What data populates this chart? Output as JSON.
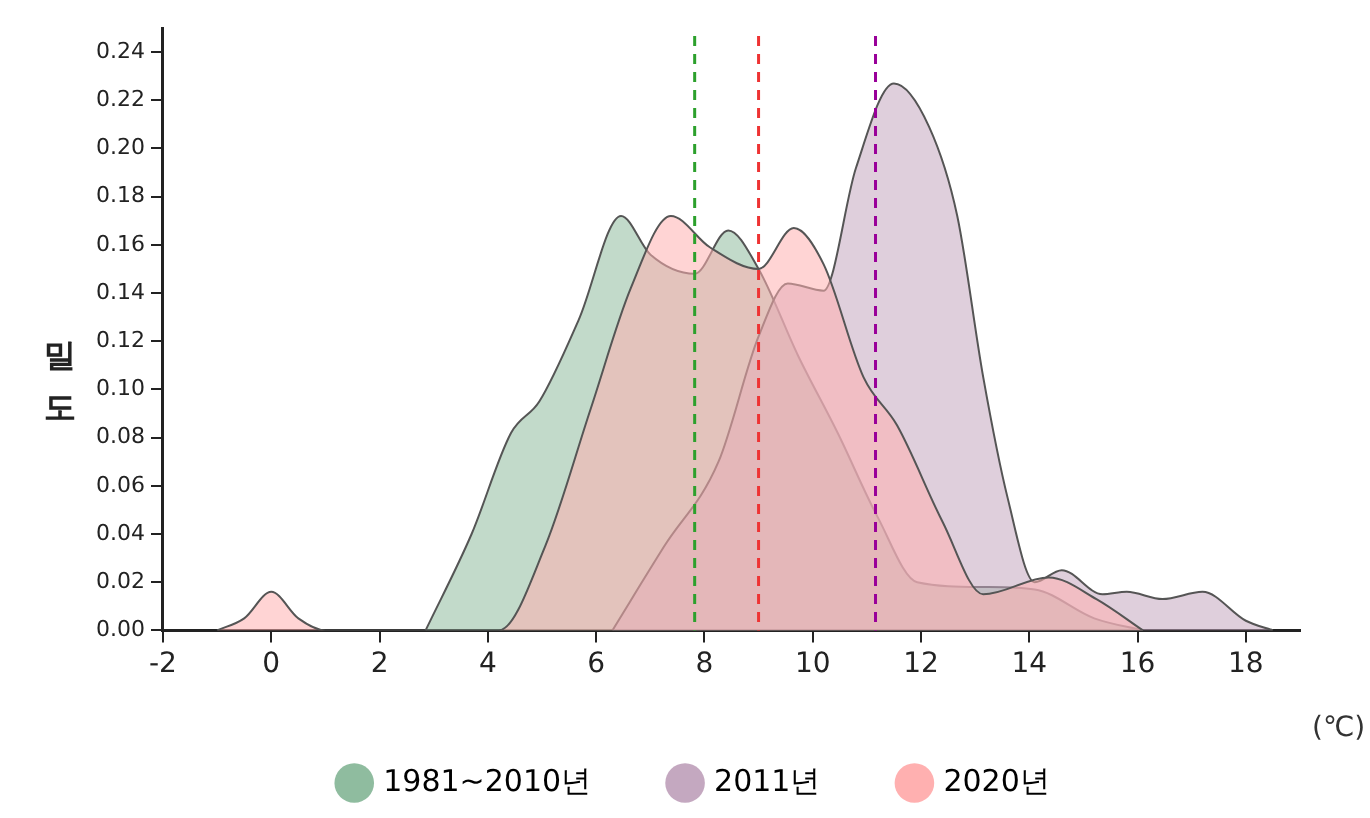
{
  "chart_data": {
    "type": "area",
    "xlabel": "(℃)",
    "ylabel": "밀도",
    "xlim": [
      -2,
      19
    ],
    "xticks": [
      -2,
      0,
      2,
      4,
      6,
      8,
      10,
      12,
      14,
      16,
      18
    ],
    "ylim": [
      0,
      0.25
    ],
    "yticks": [
      {
        "value": 0,
        "label": "0.00"
      },
      {
        "value": 0.02,
        "label": "0.02"
      },
      {
        "value": 0.04,
        "label": "0.04"
      },
      {
        "value": 0.06,
        "label": "0.06"
      },
      {
        "value": 0.08,
        "label": "0.08"
      },
      {
        "value": 0.1,
        "label": "0.10"
      },
      {
        "value": 0.12,
        "label": "0.12"
      },
      {
        "value": 0.14,
        "label": "0.14"
      },
      {
        "value": 0.16,
        "label": "0.16"
      },
      {
        "value": 0.18,
        "label": "0.18"
      },
      {
        "value": 0.2,
        "label": "0.20"
      },
      {
        "value": 0.22,
        "label": "0.22"
      },
      {
        "value": 0.24,
        "label": "0.24"
      }
    ],
    "legend": "bottom",
    "marker": "none",
    "series": [
      {
        "name": "1981~2010년",
        "color": "#8fbc9f",
        "x": [
          2.85,
          3.7,
          4.43,
          4.95,
          5.68,
          6.46,
          7.0,
          7.82,
          8.44,
          9.0,
          9.73,
          10.46,
          11.2,
          11.93,
          13.15,
          14.1,
          15.2,
          16.1
        ],
        "values": [
          0,
          0.04,
          0.082,
          0.095,
          0.129,
          0.172,
          0.156,
          0.148,
          0.166,
          0.15,
          0.114,
          0.082,
          0.047,
          0.02,
          0.018,
          0.017,
          0.005,
          0
        ]
      },
      {
        "name": "2011년",
        "color": "#c4a8c0",
        "x": [
          6.3,
          7.26,
          8.26,
          9.0,
          9.54,
          10.2,
          10.8,
          11.5,
          12.15,
          12.67,
          13.15,
          13.6,
          14.1,
          14.6,
          15.35,
          15.8,
          16.46,
          17.2,
          18.0,
          18.5
        ],
        "values": [
          0,
          0.035,
          0.07,
          0.122,
          0.144,
          0.141,
          0.192,
          0.227,
          0.209,
          0.172,
          0.105,
          0.055,
          0.02,
          0.025,
          0.015,
          0.016,
          0.013,
          0.016,
          0.004,
          0
        ]
      },
      {
        "name": "2020년",
        "color": "#ffb0b0",
        "x": [
          -1,
          -0.5,
          0,
          0.5,
          1,
          4.2,
          5.06,
          5.9,
          6.64,
          7.38,
          8.1,
          9.0,
          9.65,
          10.2,
          10.94,
          11.56,
          12.4,
          13.15,
          14.36,
          15.24,
          16.1
        ],
        "values": [
          0,
          0.005,
          0.016,
          0.005,
          0,
          0,
          0.035,
          0.092,
          0.142,
          0.172,
          0.159,
          0.15,
          0.167,
          0.152,
          0.105,
          0.085,
          0.045,
          0.015,
          0.022,
          0.013,
          0
        ]
      }
    ],
    "ref_lines": [
      {
        "axis": "x",
        "value": 7.82,
        "color": "#2ca02c",
        "line_style": "dashed"
      },
      {
        "axis": "x",
        "value": 9.0,
        "color": "#ee3333",
        "line_style": "dashed"
      },
      {
        "axis": "x",
        "value": 11.16,
        "color": "#990099",
        "line_style": "dashed"
      }
    ]
  }
}
